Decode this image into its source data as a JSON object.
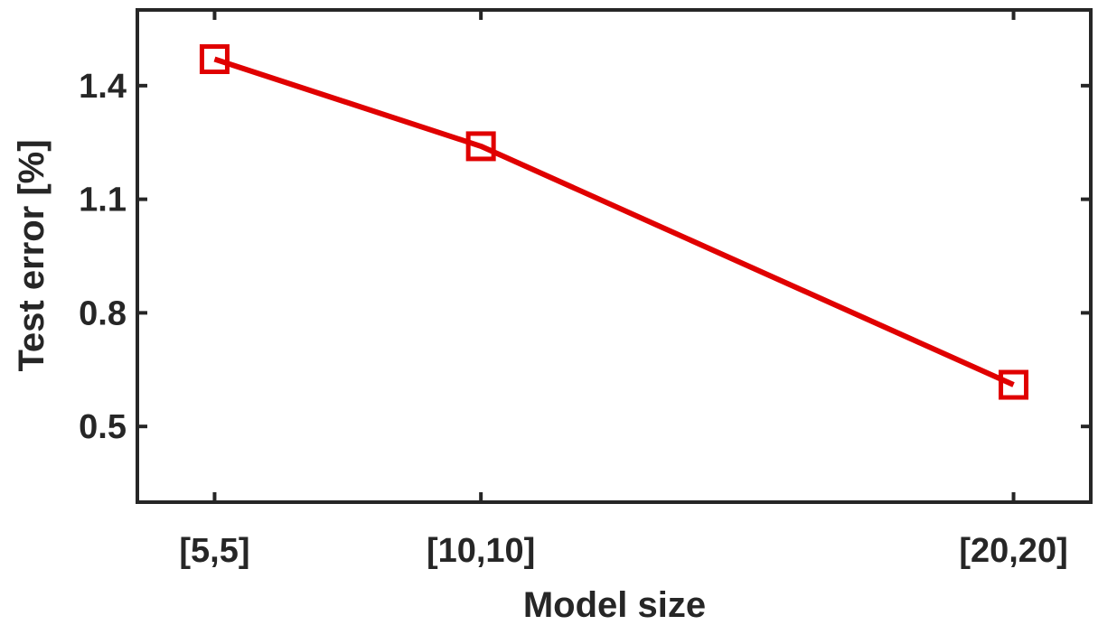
{
  "chart_data": {
    "type": "line",
    "title": "",
    "xlabel": "Model size",
    "ylabel": "Test error [%]",
    "categories": [
      "[5,5]",
      "[10,10]",
      "[20,20]"
    ],
    "x": [
      5,
      10,
      20
    ],
    "xlim": [
      3.55,
      21.45
    ],
    "ylim": [
      0.3,
      1.6
    ],
    "yticks": [
      0.5,
      0.8,
      1.1,
      1.4
    ],
    "ytick_labels": [
      "0.5",
      "0.8",
      "1.1",
      "1.4"
    ],
    "grid": false,
    "series": [
      {
        "values": [
          1.47,
          1.24,
          0.61
        ],
        "color": "#e00000",
        "marker": "square"
      }
    ]
  }
}
